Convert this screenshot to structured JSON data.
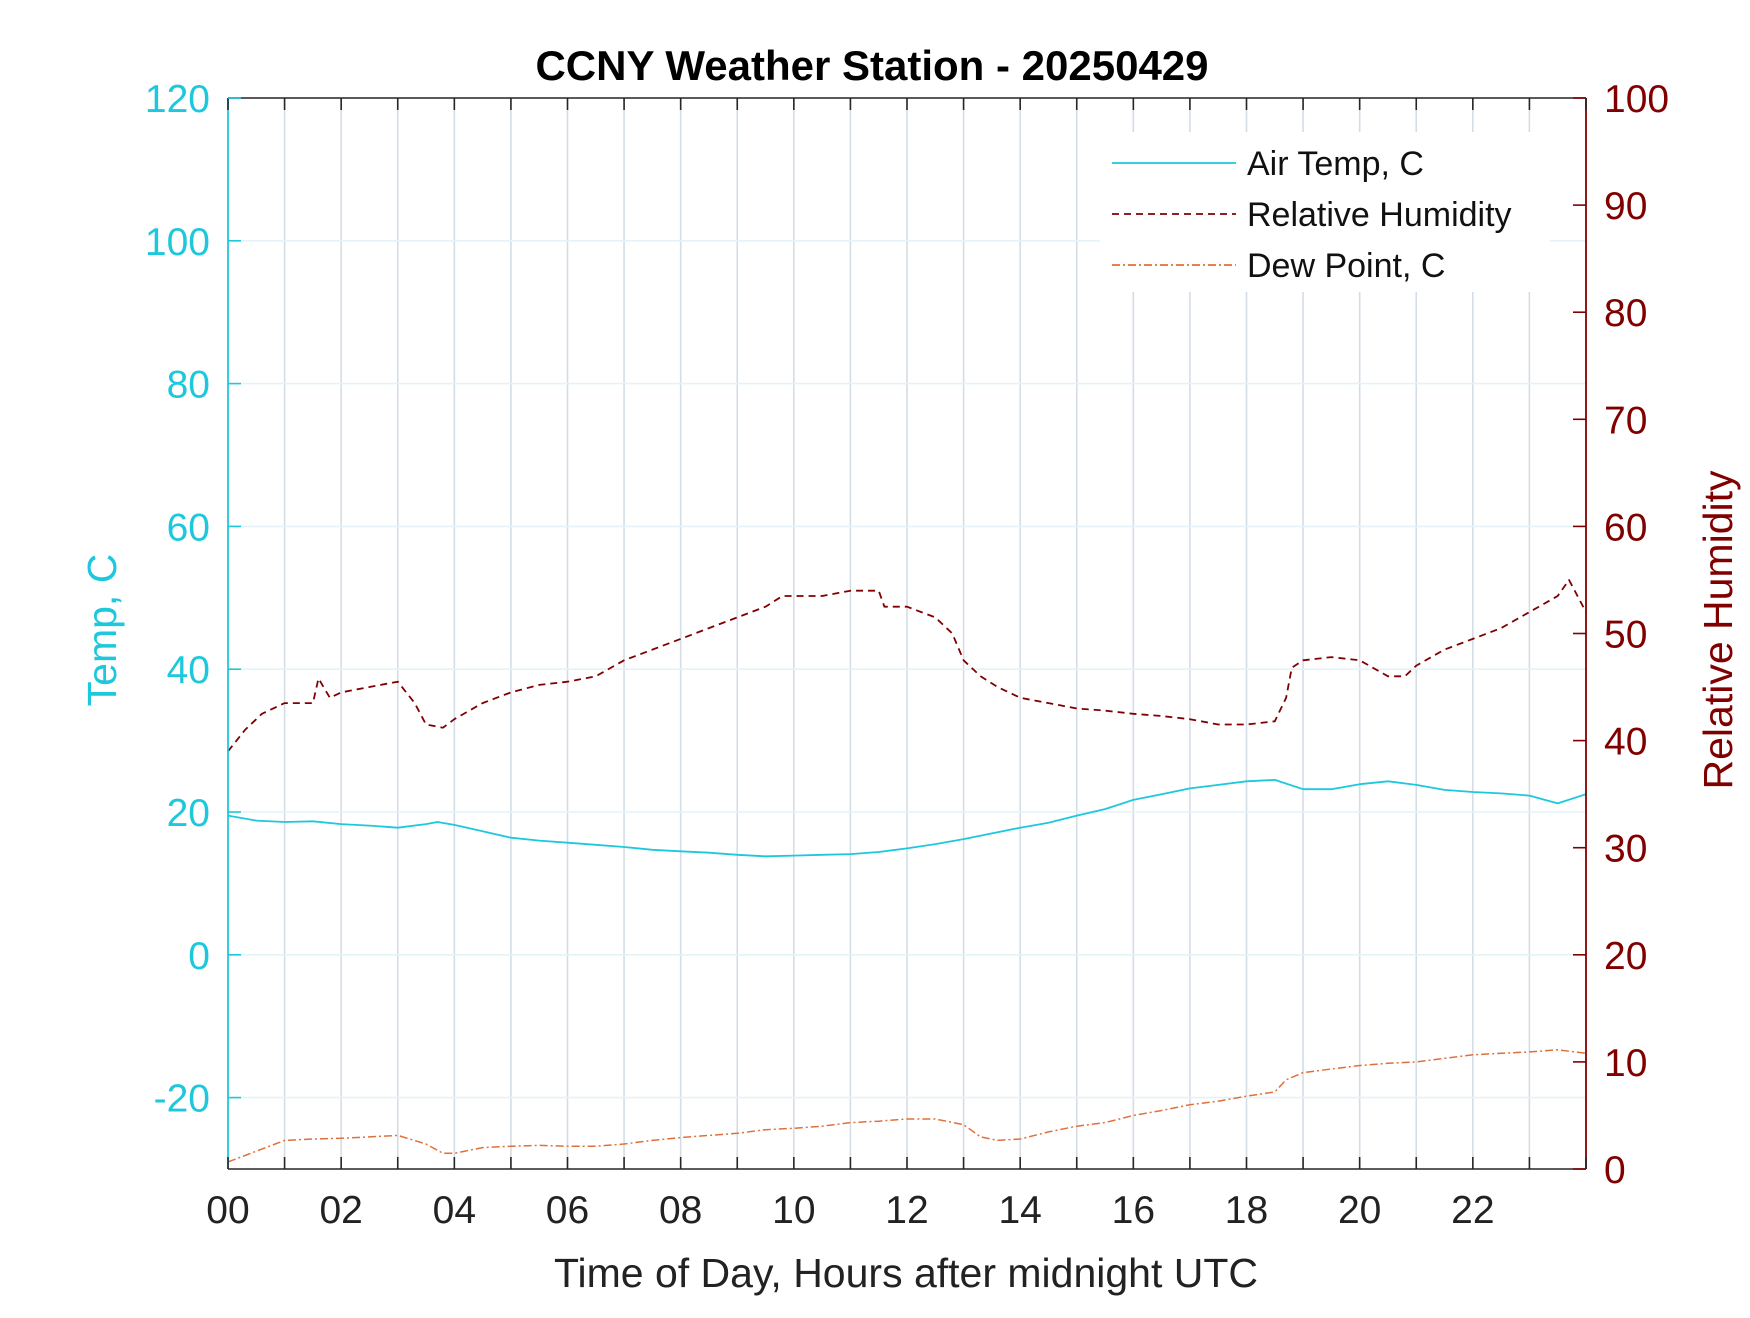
{
  "chart_data": {
    "type": "line",
    "title": "CCNY Weather Station - 20250429",
    "xlabel": "Time of Day, Hours after midnight UTC",
    "ylabel_left": "Temp, C",
    "ylabel_right": "Relative Humidity",
    "xlim": [
      0,
      24
    ],
    "ylim_left": [
      -30,
      120
    ],
    "ylim_right": [
      0,
      100
    ],
    "x_ticks": [
      0,
      2,
      4,
      6,
      8,
      10,
      12,
      14,
      16,
      18,
      20,
      22
    ],
    "x_tick_labels": [
      "00",
      "02",
      "04",
      "06",
      "08",
      "10",
      "12",
      "14",
      "16",
      "18",
      "20",
      "22"
    ],
    "y_ticks_left": [
      -20,
      0,
      20,
      40,
      60,
      80,
      100,
      120
    ],
    "y_ticks_right": [
      0,
      10,
      20,
      30,
      40,
      50,
      60,
      70,
      80,
      90,
      100
    ],
    "grid": true,
    "legend_position": "top-right",
    "colors": {
      "air_temp": "#1ec8dc",
      "relative_humidity": "#800000",
      "dew_point": "#e0703a",
      "left_axis": "#1ec8dc",
      "right_axis": "#800000",
      "grid": "#d4dde6",
      "text": "#222222"
    },
    "series": [
      {
        "name": "Air Temp, C",
        "axis": "left",
        "style": "solid",
        "x": [
          0,
          0.5,
          1,
          1.5,
          2,
          2.5,
          3,
          3.5,
          3.7,
          4,
          4.5,
          5,
          5.5,
          6,
          6.5,
          7,
          7.5,
          8,
          8.5,
          9,
          9.5,
          10,
          10.5,
          11,
          11.5,
          12,
          12.5,
          13,
          13.5,
          14,
          14.5,
          15,
          15.5,
          16,
          16.5,
          17,
          17.5,
          18,
          18.5,
          19,
          19.5,
          20,
          20.5,
          21,
          21.5,
          22,
          22.5,
          23,
          23.5,
          24
        ],
        "y": [
          19.5,
          18.8,
          18.6,
          18.7,
          18.3,
          18.1,
          17.8,
          18.3,
          18.6,
          18.2,
          17.3,
          16.4,
          16.0,
          15.7,
          15.4,
          15.1,
          14.7,
          14.5,
          14.3,
          14.0,
          13.8,
          13.9,
          14.0,
          14.1,
          14.4,
          14.9,
          15.5,
          16.2,
          17.0,
          17.8,
          18.5,
          19.5,
          20.4,
          21.7,
          22.5,
          23.3,
          23.8,
          24.3,
          24.5,
          23.2,
          23.2,
          23.9,
          24.3,
          23.8,
          23.1,
          22.8,
          22.6,
          22.3,
          21.2,
          22.5
        ]
      },
      {
        "name": "Relative Humidity",
        "axis": "right",
        "style": "dashed",
        "x": [
          0,
          0.3,
          0.6,
          1,
          1.5,
          1.6,
          1.8,
          2,
          2.5,
          3,
          3.3,
          3.5,
          3.8,
          4,
          4.5,
          5,
          5.5,
          6,
          6.5,
          7,
          7.5,
          8,
          8.5,
          9,
          9.5,
          9.8,
          10,
          10.5,
          11,
          11.5,
          11.6,
          12,
          12.5,
          12.8,
          13,
          13.3,
          13.6,
          14,
          14.5,
          15,
          15.5,
          16,
          16.5,
          17,
          17.5,
          18,
          18.5,
          18.7,
          18.8,
          19,
          19.5,
          20,
          20.5,
          20.8,
          21,
          21.5,
          22,
          22.5,
          23,
          23.5,
          23.7,
          24
        ],
        "y": [
          39.0,
          41.0,
          42.5,
          43.5,
          43.5,
          45.8,
          44.0,
          44.5,
          45.0,
          45.5,
          43.5,
          41.5,
          41.2,
          42.0,
          43.5,
          44.5,
          45.2,
          45.5,
          46.0,
          47.5,
          48.5,
          49.5,
          50.5,
          51.5,
          52.5,
          53.5,
          53.5,
          53.5,
          54.0,
          54.0,
          52.5,
          52.5,
          51.5,
          50.0,
          47.5,
          46.0,
          45.0,
          44.0,
          43.5,
          43.0,
          42.8,
          42.5,
          42.3,
          42.0,
          41.5,
          41.5,
          41.8,
          44.0,
          46.8,
          47.5,
          47.8,
          47.5,
          46.0,
          46.0,
          47.0,
          48.5,
          49.5,
          50.5,
          52.0,
          53.5,
          55.0,
          52.0
        ]
      },
      {
        "name": "Dew Point, C",
        "axis": "left",
        "style": "dashdot",
        "x": [
          0,
          0.5,
          1,
          1.5,
          2,
          2.5,
          3,
          3.5,
          3.8,
          4,
          4.5,
          5,
          5.5,
          6,
          6.5,
          7,
          7.5,
          8,
          8.5,
          9,
          9.5,
          10,
          10.5,
          11,
          11.5,
          12,
          12.5,
          13,
          13.3,
          13.6,
          14,
          14.5,
          15,
          15.5,
          16,
          16.5,
          17,
          17.5,
          18,
          18.5,
          18.7,
          19,
          19.5,
          20,
          20.5,
          21,
          21.5,
          22,
          22.5,
          23,
          23.5,
          24
        ],
        "y": [
          -29.0,
          -27.5,
          -26.0,
          -25.8,
          -25.7,
          -25.5,
          -25.3,
          -26.5,
          -27.8,
          -27.8,
          -27.0,
          -26.8,
          -26.7,
          -26.8,
          -26.8,
          -26.5,
          -26.0,
          -25.6,
          -25.3,
          -25.0,
          -24.5,
          -24.3,
          -24.0,
          -23.5,
          -23.3,
          -23.0,
          -23.0,
          -23.8,
          -25.5,
          -26.0,
          -25.8,
          -24.8,
          -24.0,
          -23.5,
          -22.5,
          -21.8,
          -21.0,
          -20.5,
          -19.8,
          -19.2,
          -17.5,
          -16.5,
          -16.0,
          -15.5,
          -15.2,
          -15.0,
          -14.5,
          -14.0,
          -13.8,
          -13.6,
          -13.3,
          -13.8
        ]
      }
    ]
  }
}
